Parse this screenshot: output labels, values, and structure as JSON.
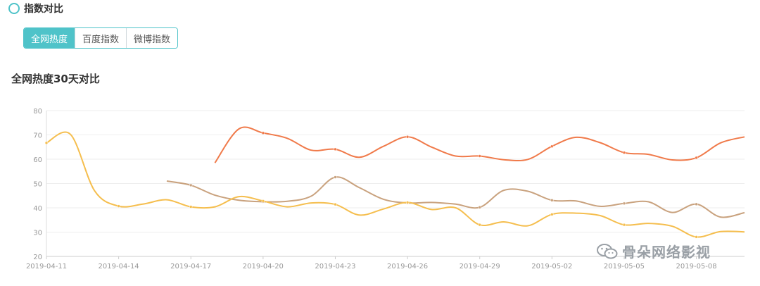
{
  "section": {
    "title": "指数对比"
  },
  "tabs": [
    {
      "label": "全网热度",
      "active": true
    },
    {
      "label": "百度指数",
      "active": false
    },
    {
      "label": "微博指数",
      "active": false
    }
  ],
  "chart_title": "全网热度30天对比",
  "watermark": "骨朵网络影视",
  "chart_data": {
    "type": "line",
    "title": "全网热度30天对比",
    "xlabel": "",
    "ylabel": "",
    "ylim": [
      20,
      80
    ],
    "yticks": [
      20,
      30,
      40,
      50,
      60,
      70,
      80
    ],
    "x_tick_labels": [
      "2019-04-11",
      "2019-04-14",
      "2019-04-17",
      "2019-04-20",
      "2019-04-23",
      "2019-04-26",
      "2019-04-29",
      "2019-05-02",
      "2019-05-05",
      "2019-05-08"
    ],
    "grid": true,
    "legend": "none",
    "x": [
      "2019-04-11",
      "2019-04-12",
      "2019-04-13",
      "2019-04-14",
      "2019-04-15",
      "2019-04-16",
      "2019-04-17",
      "2019-04-18",
      "2019-04-19",
      "2019-04-20",
      "2019-04-21",
      "2019-04-22",
      "2019-04-23",
      "2019-04-24",
      "2019-04-25",
      "2019-04-26",
      "2019-04-27",
      "2019-04-28",
      "2019-04-29",
      "2019-04-30",
      "2019-05-01",
      "2019-05-02",
      "2019-05-03",
      "2019-05-04",
      "2019-05-05",
      "2019-05-06",
      "2019-05-07",
      "2019-05-08",
      "2019-05-09",
      "2019-05-10"
    ],
    "series": [
      {
        "color": "#f07a4a",
        "values": [
          null,
          null,
          null,
          null,
          null,
          null,
          null,
          58.5,
          72.5,
          70.8,
          68.6,
          63.7,
          64.1,
          60.8,
          65.3,
          69.2,
          65.0,
          61.3,
          61.3,
          59.8,
          59.9,
          65.3,
          69.0,
          66.8,
          62.7,
          62.0,
          59.7,
          60.6,
          66.7,
          69.2
        ]
      },
      {
        "color": "#c9a27e",
        "values": [
          null,
          null,
          null,
          null,
          null,
          51.0,
          49.3,
          45.2,
          43.1,
          42.5,
          42.7,
          44.8,
          52.6,
          48.3,
          43.5,
          42.0,
          42.2,
          41.5,
          40.2,
          47.2,
          46.8,
          43.1,
          42.8,
          40.6,
          41.8,
          42.5,
          38.1,
          41.5,
          36.2,
          38.0
        ]
      },
      {
        "color": "#f5be4e",
        "values": [
          66.7,
          70.2,
          47.0,
          40.7,
          41.5,
          43.3,
          40.4,
          40.4,
          44.6,
          42.8,
          40.4,
          42.0,
          41.4,
          37.0,
          39.5,
          42.2,
          39.3,
          40.0,
          33.0,
          34.2,
          32.6,
          37.3,
          37.8,
          36.8,
          33.0,
          33.6,
          32.4,
          28.0,
          30.2,
          30.1
        ]
      }
    ]
  }
}
